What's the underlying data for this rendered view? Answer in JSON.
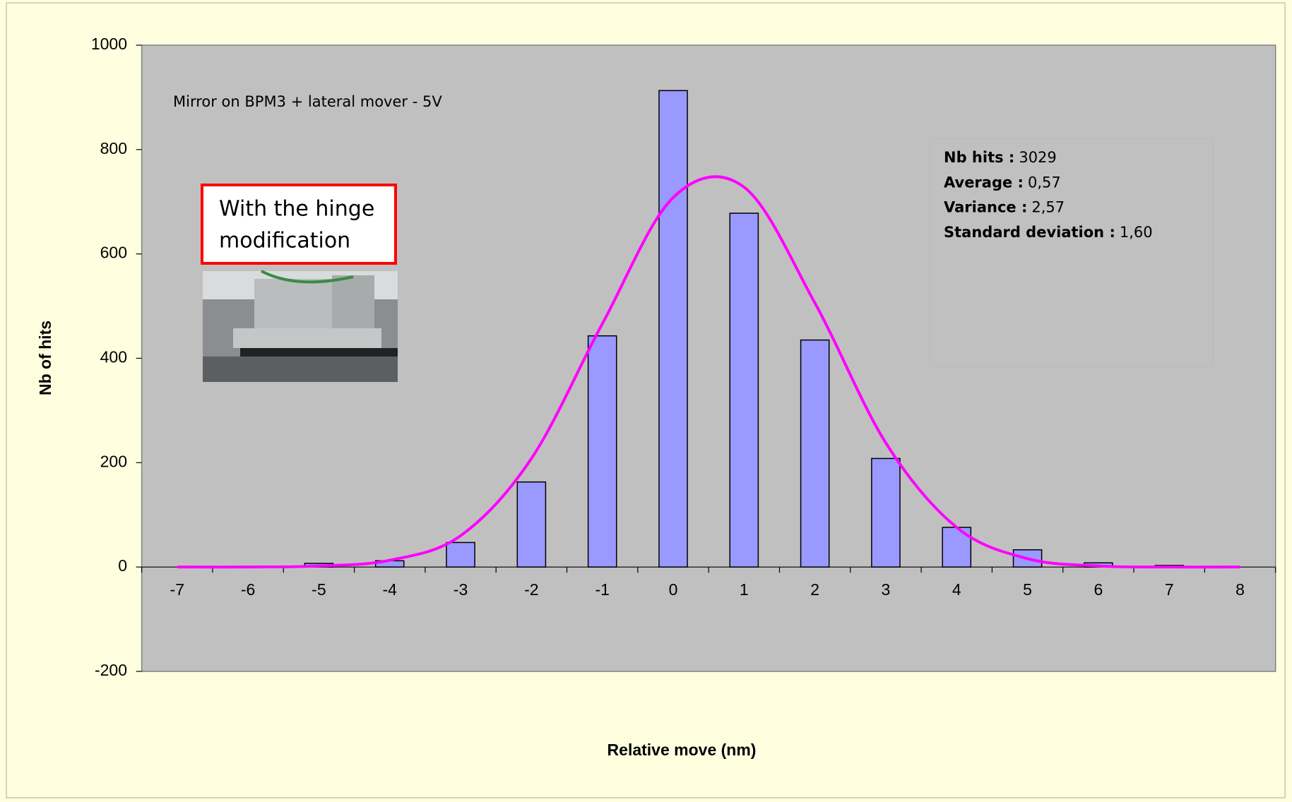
{
  "chart_data": {
    "type": "bar",
    "xlabel": "Relative move (nm)",
    "ylabel": "Nb of hits",
    "categories": [
      "-7",
      "-6",
      "-5",
      "-4",
      "-3",
      "-2",
      "-1",
      "0",
      "1",
      "2",
      "3",
      "4",
      "5",
      "6",
      "7",
      "8"
    ],
    "series": [
      {
        "type": "bar",
        "color": "#9999ff",
        "values": [
          0,
          0,
          7,
          12,
          47,
          163,
          443,
          913,
          678,
          435,
          208,
          76,
          33,
          8,
          3,
          0
        ]
      },
      {
        "type": "line",
        "color": "#ff00ff",
        "values": [
          0,
          0,
          2,
          13,
          60,
          208,
          466,
          708,
          728,
          506,
          238,
          76,
          16,
          2,
          0,
          0
        ]
      }
    ],
    "ylim": [
      -200,
      1000
    ],
    "yticks": [
      -200,
      0,
      200,
      400,
      600,
      800,
      1000
    ],
    "annotation": "Mirror on BPM3 + lateral mover - 5V",
    "stats": [
      {
        "label": "Nb hits :",
        "value": "3029"
      },
      {
        "label": "Average :",
        "value": "0,57"
      },
      {
        "label": "Variance :",
        "value": "2,57"
      },
      {
        "label": "Standard deviation :",
        "value": "1,60"
      }
    ],
    "callout": [
      "With the hinge",
      "modification"
    ]
  }
}
